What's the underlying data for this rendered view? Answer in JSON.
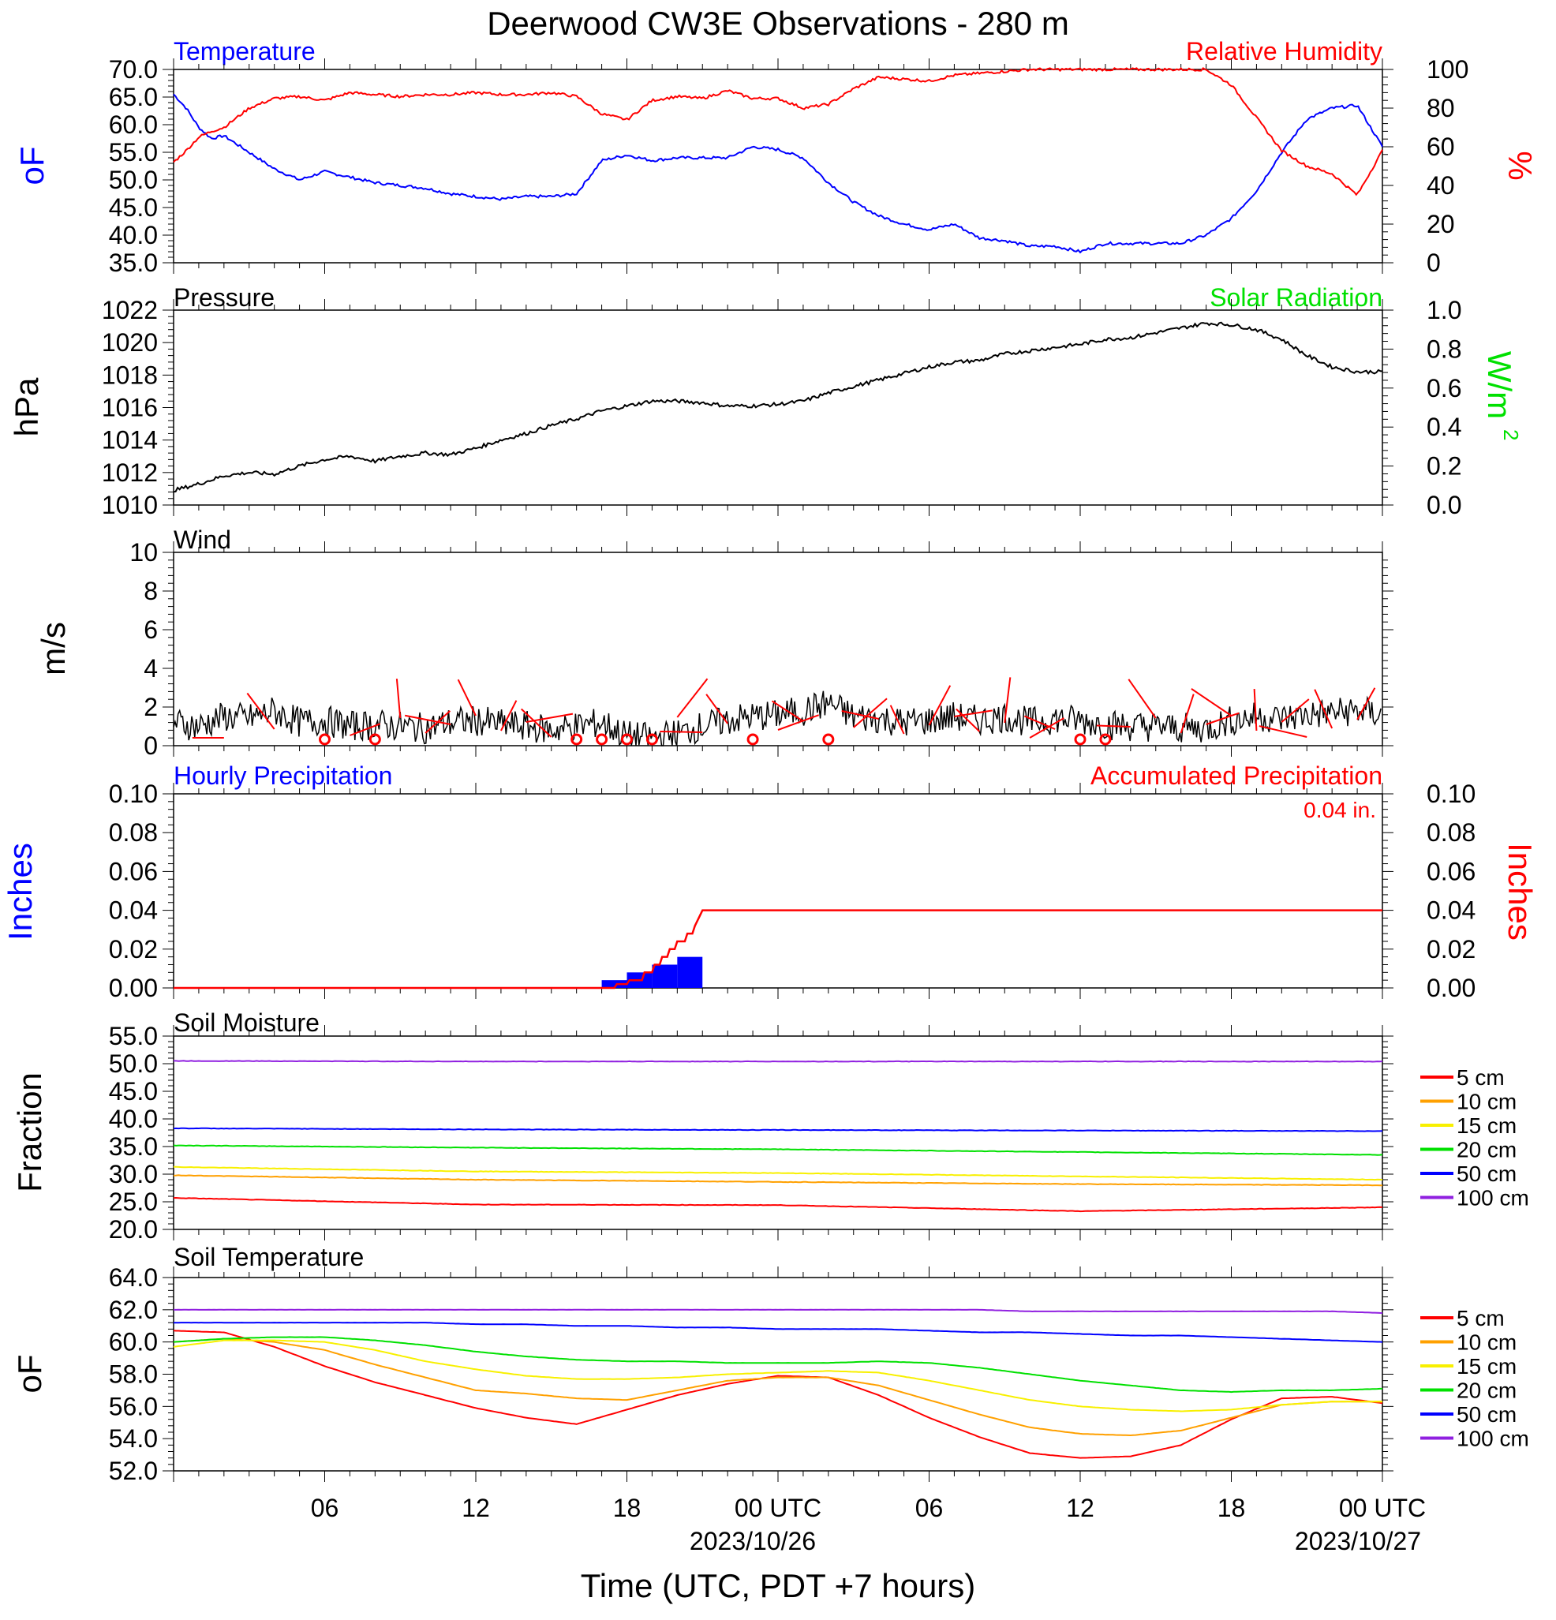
{
  "figure": {
    "title": "Deerwood CW3E Observations - 280 m",
    "xlabel": "Time (UTC, PDT +7 hours)",
    "x_ticks": [
      "06",
      "12",
      "18",
      "00 UTC",
      "06",
      "12",
      "18",
      "00 UTC"
    ],
    "x_dates": [
      "2023/10/26",
      "2023/10/27"
    ]
  },
  "colors": {
    "temperature": "#0000ff",
    "humidity": "#ff0000",
    "pressure": "#000000",
    "solar": "#00e000",
    "wind": "#000000",
    "wind_barb": "#ff0000",
    "hourly_precip": "#0000ff",
    "accum_precip": "#ff0000",
    "depth_5cm": "#ff0000",
    "depth_10cm": "#ffa000",
    "depth_15cm": "#f8f000",
    "depth_20cm": "#00e000",
    "depth_50cm": "#0000ff",
    "depth_100cm": "#9020e0"
  },
  "chart_data": [
    {
      "type": "line",
      "id": "temp_rh",
      "x_range_hours": [
        0,
        48
      ],
      "left_title": "Temperature",
      "right_title": "Relative Humidity",
      "left_axis": {
        "label": "oF",
        "range": [
          35,
          70
        ],
        "ticks": [
          "35.0",
          "40.0",
          "45.0",
          "50.0",
          "55.0",
          "60.0",
          "65.0",
          "70.0"
        ]
      },
      "right_axis": {
        "label": "%",
        "range": [
          0,
          100
        ],
        "ticks": [
          "0",
          "20",
          "40",
          "60",
          "80",
          "100"
        ]
      },
      "series": [
        {
          "name": "Temperature",
          "axis": "left",
          "color_key": "temperature",
          "x": [
            0,
            0.5,
            1,
            1.5,
            2,
            3,
            4,
            5,
            6,
            7,
            8,
            9,
            10,
            11,
            12,
            13,
            14,
            15,
            16,
            17,
            18,
            19,
            20,
            21,
            22,
            23,
            24,
            25,
            26,
            27,
            28,
            29,
            30,
            31,
            32,
            33,
            34,
            35,
            36,
            37,
            38,
            39,
            40,
            41,
            42,
            43,
            44,
            45,
            46,
            47,
            48
          ],
          "y": [
            65.5,
            63,
            59.5,
            57.5,
            58,
            55,
            52,
            50,
            51.5,
            50.5,
            49.5,
            49,
            48.5,
            47.5,
            47,
            46.5,
            47,
            47,
            47.5,
            53.5,
            54.5,
            53.5,
            54,
            54,
            54,
            56,
            55.5,
            54,
            49.5,
            46,
            43.5,
            42,
            41,
            42,
            39.5,
            39,
            38,
            38,
            37,
            38.5,
            38.5,
            38.5,
            38.5,
            40,
            43,
            48,
            55,
            61,
            63,
            63.5,
            56
          ]
        },
        {
          "name": "Relative Humidity",
          "axis": "right",
          "color_key": "humidity",
          "x": [
            0,
            0.5,
            1,
            1.5,
            2,
            3,
            4,
            5,
            6,
            7,
            8,
            9,
            10,
            11,
            12,
            13,
            14,
            15,
            16,
            17,
            18,
            19,
            20,
            21,
            22,
            23,
            24,
            25,
            26,
            27,
            28,
            29,
            30,
            31,
            32,
            33,
            34,
            35,
            36,
            37,
            38,
            39,
            40,
            41,
            42,
            43,
            44,
            45,
            46,
            47,
            48
          ],
          "y": [
            52,
            58,
            65,
            68,
            70,
            80,
            85,
            86,
            84,
            88,
            87,
            86,
            87,
            87,
            88,
            87,
            87,
            88,
            86,
            77,
            74,
            84,
            86,
            85,
            89,
            85,
            85,
            80,
            82,
            90,
            96,
            95,
            94,
            97,
            98,
            99,
            100,
            100,
            100,
            100,
            100,
            100,
            100,
            100,
            92,
            75,
            58,
            50,
            46,
            35,
            58
          ]
        }
      ]
    },
    {
      "type": "line",
      "id": "pressure_solar",
      "x_range_hours": [
        0,
        48
      ],
      "left_title": "Pressure",
      "right_title": "Solar Radiation",
      "left_axis": {
        "label": "hPa",
        "range": [
          1010,
          1022
        ],
        "ticks": [
          "1010",
          "1012",
          "1014",
          "1016",
          "1018",
          "1020",
          "1022"
        ]
      },
      "right_axis": {
        "label": "W/m",
        "label_sup": "2",
        "range": [
          0,
          1
        ],
        "ticks": [
          "0.0",
          "0.2",
          "0.4",
          "0.6",
          "0.8",
          "1.0"
        ]
      },
      "series": [
        {
          "name": "Pressure",
          "axis": "left",
          "color_key": "pressure",
          "x": [
            0,
            1,
            2,
            3,
            4,
            5,
            6,
            7,
            8,
            9,
            10,
            11,
            12,
            13,
            14,
            15,
            16,
            17,
            18,
            19,
            20,
            21,
            22,
            23,
            24,
            25,
            26,
            27,
            28,
            29,
            30,
            31,
            32,
            33,
            34,
            35,
            36,
            37,
            38,
            39,
            40,
            41,
            42,
            43,
            44,
            45,
            46,
            47,
            48
          ],
          "y": [
            1010.9,
            1011.3,
            1011.8,
            1012.0,
            1011.9,
            1012.4,
            1012.8,
            1013.0,
            1012.7,
            1013.0,
            1013.2,
            1013.1,
            1013.5,
            1014.0,
            1014.4,
            1014.9,
            1015.3,
            1015.8,
            1016.1,
            1016.4,
            1016.4,
            1016.3,
            1016.1,
            1016.1,
            1016.2,
            1016.4,
            1016.9,
            1017.3,
            1017.7,
            1018.1,
            1018.5,
            1018.8,
            1018.9,
            1019.3,
            1019.5,
            1019.7,
            1019.9,
            1020.2,
            1020.3,
            1020.6,
            1020.9,
            1021.2,
            1021.1,
            1020.8,
            1020.2,
            1019.2,
            1018.5,
            1018.2,
            1018.2
          ]
        }
      ]
    },
    {
      "type": "line",
      "id": "wind",
      "x_range_hours": [
        0,
        48
      ],
      "left_title": "Wind",
      "left_axis": {
        "label": "m/s",
        "range": [
          0,
          10
        ],
        "ticks": [
          "0",
          "2",
          "4",
          "6",
          "8",
          "10"
        ]
      },
      "series": [
        {
          "name": "Wind",
          "axis": "left",
          "color_key": "wind",
          "x": [
            0,
            1,
            2,
            3,
            4,
            5,
            6,
            7,
            8,
            9,
            10,
            11,
            12,
            13,
            14,
            15,
            16,
            17,
            18,
            19,
            20,
            21,
            22,
            23,
            24,
            25,
            26,
            27,
            28,
            29,
            30,
            31,
            32,
            33,
            34,
            35,
            36,
            37,
            38,
            39,
            40,
            41,
            42,
            43,
            44,
            45,
            46,
            47,
            48
          ],
          "y": [
            1.2,
            1.0,
            1.5,
            1.4,
            1.8,
            1.2,
            1.3,
            1.0,
            1.1,
            1.0,
            0.9,
            1.2,
            1.3,
            1.1,
            1.0,
            0.8,
            1.0,
            1.2,
            0.5,
            0.4,
            0.6,
            1.0,
            1.3,
            1.5,
            1.6,
            1.8,
            2.2,
            1.5,
            1.4,
            1.2,
            1.3,
            1.5,
            1.3,
            1.5,
            1.2,
            1.4,
            1.3,
            1.1,
            1.0,
            1.0,
            0.9,
            0.9,
            1.3,
            1.5,
            1.4,
            1.6,
            1.7,
            1.8,
            1.6
          ]
        }
      ],
      "barbs_hours": [
        2,
        4,
        6,
        7,
        8,
        9,
        10,
        11,
        12,
        13,
        14,
        15,
        16,
        17,
        18,
        19,
        20,
        21,
        22,
        23,
        24,
        25,
        26,
        27,
        28,
        29,
        30,
        31,
        32,
        33,
        34,
        35,
        36,
        37,
        38,
        39,
        40,
        41,
        42,
        43,
        44,
        45,
        46,
        47
      ],
      "calm_hours": [
        6,
        8,
        16,
        17,
        18,
        19,
        23,
        26,
        36,
        37
      ]
    },
    {
      "type": "bar",
      "id": "precipitation",
      "x_range_hours": [
        0,
        48
      ],
      "left_title": "Hourly Precipitation",
      "right_title": "Accumulated Precipitation",
      "total_label": "0.04 in.",
      "left_axis": {
        "label": "Inches",
        "range": [
          0,
          0.1
        ],
        "ticks": [
          "0.00",
          "0.02",
          "0.04",
          "0.06",
          "0.08",
          "0.10"
        ]
      },
      "right_axis": {
        "label": "Inches",
        "range": [
          0,
          0.1
        ],
        "ticks": [
          "0.00",
          "0.02",
          "0.04",
          "0.06",
          "0.08",
          "0.10"
        ]
      },
      "hourly_bars": [
        {
          "start": 17,
          "end": 18,
          "value": 0.004
        },
        {
          "start": 18,
          "end": 19,
          "value": 0.008
        },
        {
          "start": 19,
          "end": 20,
          "value": 0.012
        },
        {
          "start": 20,
          "end": 21,
          "value": 0.016
        }
      ],
      "accumulated": {
        "x": [
          0,
          17.5,
          17.6,
          18.0,
          18.1,
          18.6,
          18.7,
          19.0,
          19.1,
          19.3,
          19.4,
          19.6,
          19.7,
          19.9,
          20.0,
          20.3,
          20.4,
          20.6,
          20.7,
          21,
          48
        ],
        "y": [
          0,
          0,
          0.002,
          0.002,
          0.004,
          0.004,
          0.008,
          0.008,
          0.012,
          0.012,
          0.016,
          0.016,
          0.02,
          0.02,
          0.024,
          0.024,
          0.028,
          0.028,
          0.032,
          0.04,
          0.04
        ]
      }
    },
    {
      "type": "line",
      "id": "soil_moisture",
      "x_range_hours": [
        0,
        48
      ],
      "left_title": "Soil Moisture",
      "left_axis": {
        "label": "Fraction",
        "range": [
          20,
          55
        ],
        "ticks": [
          "20.0",
          "25.0",
          "30.0",
          "35.0",
          "40.0",
          "45.0",
          "50.0",
          "55.0"
        ]
      },
      "x": [
        0,
        12,
        24,
        36,
        48
      ],
      "series": [
        {
          "name": "5 cm",
          "color_key": "depth_5cm",
          "y": [
            25.7,
            24.5,
            24.4,
            23.3,
            24.0
          ]
        },
        {
          "name": "10 cm",
          "color_key": "depth_10cm",
          "y": [
            29.8,
            29.0,
            28.6,
            28.2,
            28.0
          ]
        },
        {
          "name": "15 cm",
          "color_key": "depth_15cm",
          "y": [
            31.3,
            30.5,
            30.2,
            29.6,
            29.0
          ]
        },
        {
          "name": "20 cm",
          "color_key": "depth_20cm",
          "y": [
            35.2,
            34.8,
            34.5,
            34.0,
            33.5
          ]
        },
        {
          "name": "50 cm",
          "color_key": "depth_50cm",
          "y": [
            38.3,
            38.1,
            38.0,
            37.9,
            37.8
          ]
        },
        {
          "name": "100 cm",
          "color_key": "depth_100cm",
          "y": [
            50.5,
            50.4,
            50.4,
            50.4,
            50.4
          ]
        }
      ]
    },
    {
      "type": "line",
      "id": "soil_temperature",
      "x_range_hours": [
        0,
        48
      ],
      "left_title": "Soil Temperature",
      "left_axis": {
        "label": "oF",
        "range": [
          52,
          64
        ],
        "ticks": [
          "52.0",
          "54.0",
          "56.0",
          "58.0",
          "60.0",
          "62.0",
          "64.0"
        ]
      },
      "x": [
        0,
        2,
        4,
        6,
        8,
        10,
        12,
        14,
        16,
        18,
        20,
        22,
        24,
        26,
        28,
        30,
        32,
        34,
        36,
        38,
        40,
        42,
        44,
        46,
        48
      ],
      "series": [
        {
          "name": "5 cm",
          "color_key": "depth_5cm",
          "y": [
            60.7,
            60.6,
            59.7,
            58.5,
            57.5,
            56.7,
            55.9,
            55.3,
            54.9,
            55.8,
            56.7,
            57.4,
            57.9,
            57.8,
            56.7,
            55.3,
            54.1,
            53.1,
            52.8,
            52.9,
            53.6,
            55.2,
            56.5,
            56.6,
            56.2
          ]
        },
        {
          "name": "10 cm",
          "color_key": "depth_10cm",
          "y": [
            60.0,
            60.2,
            60.0,
            59.5,
            58.6,
            57.8,
            57.0,
            56.8,
            56.5,
            56.4,
            57.0,
            57.6,
            57.8,
            57.8,
            57.3,
            56.4,
            55.5,
            54.7,
            54.3,
            54.2,
            54.5,
            55.3,
            56.1,
            56.3,
            56.3
          ]
        },
        {
          "name": "15 cm",
          "color_key": "depth_15cm",
          "y": [
            59.7,
            60.1,
            60.1,
            60.0,
            59.5,
            58.8,
            58.3,
            57.9,
            57.7,
            57.7,
            57.8,
            58.0,
            58.1,
            58.2,
            58.1,
            57.6,
            57.0,
            56.4,
            56.0,
            55.8,
            55.7,
            55.8,
            56.1,
            56.3,
            56.3
          ]
        },
        {
          "name": "20 cm",
          "color_key": "depth_20cm",
          "y": [
            60.0,
            60.2,
            60.3,
            60.3,
            60.1,
            59.8,
            59.4,
            59.1,
            58.9,
            58.8,
            58.8,
            58.7,
            58.7,
            58.7,
            58.8,
            58.7,
            58.4,
            58.0,
            57.6,
            57.3,
            57.0,
            56.9,
            57.0,
            57.0,
            57.1
          ]
        },
        {
          "name": "50 cm",
          "color_key": "depth_50cm",
          "y": [
            61.2,
            61.2,
            61.2,
            61.2,
            61.2,
            61.2,
            61.1,
            61.1,
            61.0,
            61.0,
            60.9,
            60.9,
            60.8,
            60.8,
            60.8,
            60.7,
            60.6,
            60.6,
            60.5,
            60.4,
            60.4,
            60.3,
            60.2,
            60.1,
            60.0
          ]
        },
        {
          "name": "100 cm",
          "color_key": "depth_100cm",
          "y": [
            62.0,
            62.0,
            62.0,
            62.0,
            62.0,
            62.0,
            62.0,
            62.0,
            62.0,
            62.0,
            62.0,
            62.0,
            62.0,
            62.0,
            62.0,
            62.0,
            62.0,
            61.9,
            61.9,
            61.9,
            61.9,
            61.9,
            61.9,
            61.9,
            61.8
          ]
        }
      ]
    }
  ]
}
